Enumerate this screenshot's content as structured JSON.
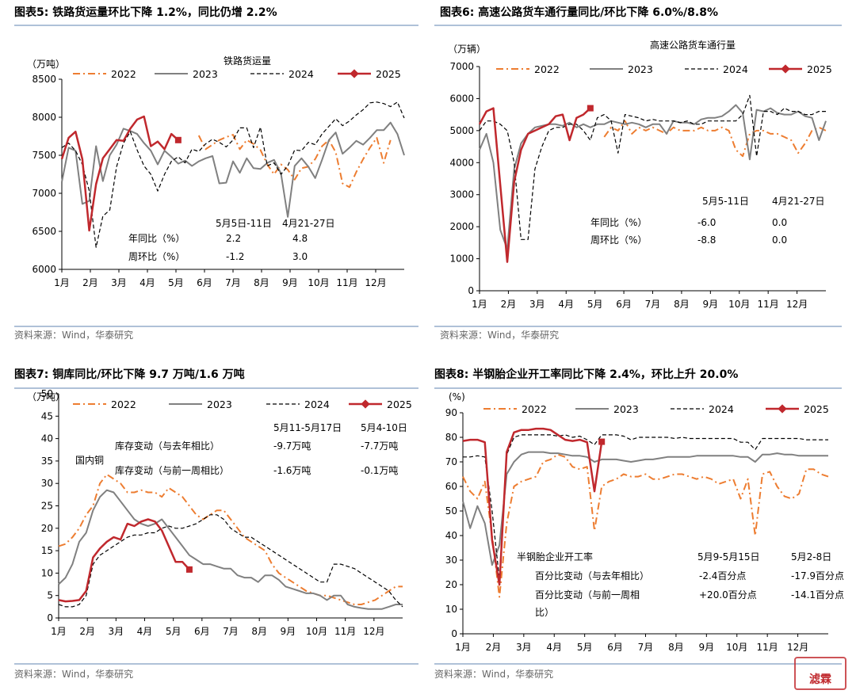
{
  "colors": {
    "s2022": "#ED7D31",
    "s2023": "#808080",
    "s2024": "#000000",
    "s2025": "#C0282D",
    "rule": "#7F9CC0",
    "source": "#666666"
  },
  "legend_labels": [
    "2022",
    "2023",
    "2024",
    "2025"
  ],
  "source_text": "资料来源：Wind，华泰研究",
  "watermark_text": "滤霖",
  "chart_data": [
    {
      "type": "line",
      "figure_title": "图表5:  铁路货运量环比下降 1.2%，同比仍增 2.2%",
      "inner_title": "铁路货运量",
      "unit_label": "（万吨）",
      "ylim": [
        6000,
        8500
      ],
      "yticks": [
        6000,
        6500,
        7000,
        7500,
        8000,
        8500
      ],
      "xticks": [
        "1月",
        "2月",
        "3月",
        "4月",
        "5月",
        "6月",
        "7月",
        "8月",
        "9月",
        "10月",
        "11月",
        "12月"
      ],
      "legend": [
        "2022",
        "2023",
        "2024",
        "2025"
      ],
      "annotation": {
        "headers": [
          "5月5日-11日",
          "4月21-27日"
        ],
        "rows": [
          {
            "label": "年同比（%）",
            "v1": "2.2",
            "v2": "4.8"
          },
          {
            "label": "周环比（%）",
            "v1": "-1.2",
            "v2": "3.0"
          }
        ]
      },
      "series": [
        {
          "name": "2022",
          "values": [
            null,
            null,
            null,
            null,
            null,
            null,
            null,
            null,
            null,
            null,
            null,
            null,
            null,
            null,
            null,
            null,
            null,
            null,
            null,
            null,
            7760,
            7580,
            7640,
            7700,
            7740,
            7770,
            7580,
            7700,
            7650,
            7570,
            7380,
            7250,
            7380,
            7310,
            7180,
            7330,
            7350,
            7450,
            7620,
            7700,
            7540,
            7130,
            7080,
            7280,
            7450,
            7600,
            7730,
            7400,
            7700
          ]
        },
        {
          "name": "2023",
          "values": [
            7150,
            7600,
            7560,
            6860,
            6900,
            7620,
            7160,
            7500,
            7640,
            7850,
            7820,
            7780,
            7660,
            7560,
            7380,
            7560,
            7480,
            7390,
            7430,
            7360,
            7420,
            7460,
            7490,
            7130,
            7140,
            7420,
            7270,
            7460,
            7330,
            7320,
            7400,
            7440,
            7260,
            6690,
            7360,
            7460,
            7350,
            7200,
            7440,
            7700,
            7800,
            7520,
            7600,
            7690,
            7640,
            7730,
            7830,
            7830,
            7930,
            7780,
            7500
          ]
        },
        {
          "name": "2024",
          "values": [
            7600,
            7660,
            7560,
            7380,
            7030,
            6290,
            6700,
            6780,
            7350,
            7660,
            7810,
            7570,
            7360,
            7250,
            7030,
            7250,
            7420,
            7480,
            7400,
            7580,
            7550,
            7650,
            7710,
            7670,
            7610,
            7700,
            7860,
            7860,
            7600,
            7870,
            7360,
            7400,
            7250,
            7360,
            7570,
            7560,
            7670,
            7640,
            7780,
            7880,
            7980,
            7890,
            7950,
            8030,
            8100,
            8190,
            8200,
            8180,
            8140,
            8200,
            7990
          ]
        },
        {
          "name": "2025",
          "values": [
            7450,
            7730,
            7810,
            7450,
            6510,
            7120,
            7460,
            7580,
            7700,
            7690,
            7850,
            7970,
            8010,
            7620,
            7680,
            7580,
            7780,
            7700
          ],
          "marker_at": 17
        }
      ]
    },
    {
      "type": "line",
      "figure_title": "图表6:  高速公路货车通行量同比/环比下降 6.0%/8.8%",
      "inner_title": "高速公路货车通行量",
      "unit_label": "（万辆）",
      "ylim": [
        0,
        7000
      ],
      "yticks": [
        0,
        1000,
        2000,
        3000,
        4000,
        5000,
        6000,
        7000
      ],
      "xticks": [
        "1月",
        "2月",
        "3月",
        "4月",
        "5月",
        "6月",
        "7月",
        "8月",
        "9月",
        "10月",
        "11月",
        "12月"
      ],
      "legend": [
        "2022",
        "2023",
        "2024",
        "2025"
      ],
      "annotation": {
        "headers": [
          "5月5-11日",
          "4月21-27日"
        ],
        "rows": [
          {
            "label": "年同比（%）",
            "v1": "-6.0",
            "v2": "0.0"
          },
          {
            "label": "周环比（%）",
            "v1": "-8.8",
            "v2": "0.0"
          }
        ]
      },
      "series": [
        {
          "name": "2022",
          "values": [
            null,
            null,
            null,
            null,
            null,
            null,
            null,
            null,
            null,
            null,
            null,
            null,
            null,
            null,
            null,
            null,
            null,
            null,
            4800,
            5100,
            5000,
            5300,
            4900,
            5100,
            5000,
            5100,
            5000,
            4900,
            5100,
            5000,
            5000,
            5000,
            5100,
            5000,
            5000,
            5100,
            5000,
            4400,
            4200,
            4900,
            5000,
            5000,
            4900,
            4900,
            4800,
            4700,
            4300,
            4600,
            5000,
            5100,
            5000
          ]
        },
        {
          "name": "2023",
          "values": [
            4400,
            4900,
            4000,
            1900,
            1300,
            3800,
            4600,
            4900,
            5100,
            5150,
            5200,
            5200,
            5150,
            5250,
            5100,
            5200,
            5100,
            5200,
            5200,
            5300,
            5250,
            5200,
            5250,
            5200,
            5100,
            5200,
            5200,
            4900,
            5300,
            5250,
            5250,
            5200,
            5350,
            5400,
            5400,
            5450,
            5600,
            5800,
            5550,
            4100,
            5650,
            5600,
            5700,
            5550,
            5500,
            5500,
            5600,
            5450,
            5400,
            4700,
            5300
          ]
        },
        {
          "name": "2024",
          "values": [
            5000,
            5300,
            5300,
            5200,
            5000,
            4000,
            1600,
            1600,
            3800,
            4500,
            5000,
            5100,
            5100,
            5200,
            5200,
            5000,
            4700,
            5400,
            5500,
            5300,
            4300,
            5500,
            5450,
            5400,
            5300,
            5350,
            5300,
            5300,
            5300,
            5250,
            5300,
            5200,
            5200,
            5300,
            5300,
            5300,
            5300,
            5300,
            5500,
            6100,
            4200,
            5600,
            5600,
            5500,
            5700,
            5600,
            5600,
            5500,
            5500,
            5600,
            5600
          ]
        },
        {
          "name": "2025",
          "values": [
            5200,
            5600,
            5700,
            3300,
            900,
            3400,
            4400,
            4900,
            5000,
            5100,
            5200,
            5450,
            5500,
            4700,
            5400,
            5500,
            5700
          ],
          "marker_at": 16
        }
      ]
    },
    {
      "type": "line",
      "figure_title": "图表7:  铜库同比/环比下降 9.7 万吨/1.6 万吨",
      "inner_title": "国内铜",
      "unit_label": "（万吨）",
      "ylim": [
        0,
        50
      ],
      "yticks": [
        0,
        5,
        10,
        15,
        20,
        25,
        30,
        35,
        40,
        45,
        50
      ],
      "xticks": [
        "1月",
        "2月",
        "3月",
        "4月",
        "5月",
        "6月",
        "7月",
        "8月",
        "9月",
        "10月",
        "11月",
        "12月"
      ],
      "legend": [
        "2022",
        "2023",
        "2024",
        "2025"
      ],
      "annotation": {
        "headers": [
          "5月11-5月17日",
          "5月4-10日"
        ],
        "rows": [
          {
            "label": "库存变动（与去年相比）",
            "v1": "-9.7万吨",
            "v2": "-7.7万吨"
          },
          {
            "label": "库存变动（与前一周相比）",
            "v1": "-1.6万吨",
            "v2": "-0.1万吨"
          }
        ]
      },
      "series": [
        {
          "name": "2022",
          "values": [
            16,
            16.5,
            18,
            20,
            23,
            25,
            30,
            32,
            31,
            30,
            28,
            28,
            28.5,
            28,
            28,
            27,
            29,
            28,
            27,
            25,
            23,
            22,
            23,
            24,
            24,
            22,
            20,
            18,
            17,
            16,
            15,
            12,
            10,
            9,
            8,
            7,
            6,
            5.5,
            5,
            5,
            4.5,
            4,
            3.5,
            3,
            3,
            3.5,
            4,
            5,
            6,
            7,
            7
          ]
        },
        {
          "name": "2023",
          "values": [
            7.5,
            9,
            12,
            17,
            19,
            24,
            27,
            28.5,
            28,
            26,
            24,
            22,
            21,
            20.5,
            21,
            22,
            20,
            18,
            16,
            14,
            13,
            12,
            12,
            11.5,
            11,
            11,
            9.5,
            9,
            9,
            8,
            9.5,
            9.5,
            8.5,
            7,
            6.5,
            6,
            5.5,
            5.5,
            5,
            4,
            5,
            5,
            3,
            2.5,
            2.2,
            2,
            2,
            2,
            2.5,
            3,
            3
          ]
        },
        {
          "name": "2024",
          "values": [
            3,
            2.5,
            2.5,
            3,
            5,
            12,
            14,
            15,
            16,
            17,
            18,
            18.5,
            18.5,
            19,
            19,
            20,
            20.5,
            20,
            20,
            20.5,
            21,
            22,
            23,
            23,
            22,
            20,
            19,
            18,
            18,
            17,
            16,
            15,
            14,
            13,
            12,
            11,
            10,
            9,
            8,
            8,
            12,
            12,
            11.5,
            11,
            10,
            9,
            8,
            7,
            6,
            4,
            2.5
          ]
        },
        {
          "name": "2025",
          "values": [
            4,
            3.7,
            3.8,
            4,
            6,
            13.5,
            15.5,
            17,
            18,
            17.5,
            21,
            20.5,
            21.5,
            22,
            21.5,
            19.5,
            16,
            12.5,
            12.5,
            10.8
          ],
          "marker_at": 19
        }
      ]
    },
    {
      "type": "line",
      "figure_title": "图表8:  半钢胎企业开工率同比下降 2.4%，环比上升 20.0%",
      "inner_title": "半钢胎企业开工率",
      "unit_label": "(%)",
      "ylim": [
        0,
        90
      ],
      "yticks": [
        0,
        10,
        20,
        30,
        40,
        50,
        60,
        70,
        80,
        90
      ],
      "xticks": [
        "1月",
        "2月",
        "3月",
        "4月",
        "5月",
        "6月",
        "7月",
        "8月",
        "9月",
        "10月",
        "11月",
        "12月"
      ],
      "legend": [
        "2022",
        "2023",
        "2024",
        "2025"
      ],
      "annotation": {
        "headers": [
          "5月9-5月15日",
          "5月2-8日"
        ],
        "rows": [
          {
            "label": "百分比变动（与去年相比）",
            "v1": "-2.4百分点",
            "v2": "-17.9百分点"
          },
          {
            "label": "百分比变动（与前一周相",
            "v1": "+20.0百分点",
            "v2": "-14.1百分点"
          }
        ],
        "wrap": "比）"
      },
      "series": [
        {
          "name": "2022",
          "values": [
            64,
            58,
            55,
            62,
            40,
            15,
            45,
            60,
            62,
            63,
            64,
            70,
            71,
            73,
            72,
            68,
            67,
            68,
            42,
            60,
            62,
            63,
            65,
            64,
            64,
            65,
            63,
            63,
            64,
            65,
            65,
            64,
            63,
            64,
            63,
            61,
            62,
            63,
            55,
            63,
            40,
            65,
            66,
            60,
            56,
            55,
            57,
            67,
            67,
            65,
            64
          ]
        },
        {
          "name": "2023",
          "values": [
            54,
            43,
            52,
            45,
            28,
            36,
            65,
            70,
            73,
            74,
            74,
            74,
            73.5,
            73.5,
            73,
            72.5,
            72.5,
            72,
            70,
            71,
            71,
            71,
            70.5,
            70,
            70.5,
            71,
            71,
            71.5,
            72,
            72,
            72,
            72,
            72.5,
            72.5,
            72.5,
            72.5,
            72.5,
            72.5,
            72,
            72,
            70,
            73,
            73,
            73.5,
            73,
            73,
            72.5,
            72.5,
            72.5,
            72.5,
            72.5
          ]
        },
        {
          "name": "2024",
          "values": [
            72,
            72,
            72.5,
            72,
            50,
            22,
            73,
            80,
            81,
            81,
            81,
            81,
            81,
            80.5,
            81,
            80,
            80.5,
            79,
            77,
            81,
            81,
            81,
            80.5,
            79,
            80,
            80,
            80,
            80,
            80,
            79.5,
            80,
            79.5,
            79.5,
            79.5,
            79.5,
            79.5,
            79.5,
            79.5,
            78,
            78,
            75,
            79.5,
            79.5,
            79.5,
            79.5,
            79.5,
            79.5,
            79,
            79,
            79,
            79
          ]
        },
        {
          "name": "2025",
          "values": [
            78.5,
            79,
            79,
            78,
            38,
            20,
            74,
            82,
            83,
            83,
            83.5,
            83.5,
            83,
            81,
            79,
            78.5,
            79,
            78,
            58,
            78.2
          ],
          "marker_at": 19
        }
      ]
    }
  ]
}
